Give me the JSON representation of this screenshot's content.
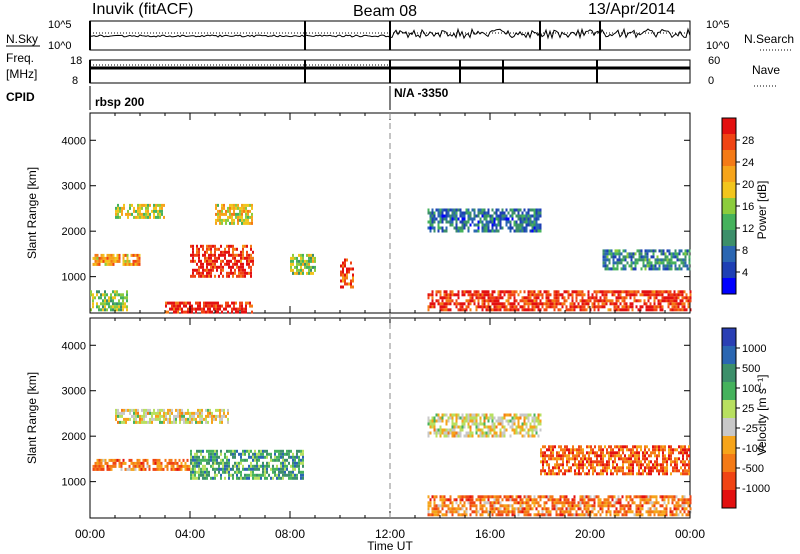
{
  "header": {
    "station": "Inuvik (fitACF)",
    "beam": "Beam 08",
    "date": "13/Apr/2014"
  },
  "top_panels": {
    "nsky_label": "N.Sky",
    "nsky_ticks": [
      "10^5",
      "10^0"
    ],
    "nsearch_label": "N.Search",
    "nsearch_ticks": [
      "10^5",
      "10^0"
    ],
    "freq_label": "Freq.",
    "freq_unit": "[MHz]",
    "freq_ticks": [
      "18",
      "8"
    ],
    "nave_label": "Nave",
    "nave_ticks": [
      "60",
      "0"
    ],
    "cpid_label": "CPID",
    "cpid_segments": [
      "rbsp 200",
      "N/A -3350"
    ]
  },
  "chart_data": [
    {
      "type": "heatmap",
      "title": "",
      "xlabel": "",
      "ylabel": "Slant Range [km]",
      "x_ticks": [
        "00:00",
        "04:00",
        "08:00",
        "12:00",
        "16:00",
        "20:00",
        "00:00"
      ],
      "y_ticks": [
        "1000",
        "2000",
        "3000",
        "4000"
      ],
      "ylim": [
        200,
        4600
      ],
      "xlim": [
        0,
        24
      ],
      "colorbar": {
        "label": "Power [dB]",
        "ticks": [
          "4",
          "8",
          "12",
          "16",
          "20",
          "24",
          "28"
        ],
        "colors": [
          "#0000ff",
          "#1e3fb4",
          "#2a66b2",
          "#3c8f6a",
          "#45b25c",
          "#8ccc3c",
          "#f2c51c",
          "#f6a41a",
          "#f47a16",
          "#f04414",
          "#e31010"
        ]
      },
      "regions": [
        {
          "t": [
            0.1,
            2.0
          ],
          "r": [
            1250,
            1500
          ],
          "level": 0.7
        },
        {
          "t": [
            1.0,
            3.0
          ],
          "r": [
            2300,
            2600
          ],
          "level": 0.55
        },
        {
          "t": [
            4.0,
            6.5
          ],
          "r": [
            1000,
            1700
          ],
          "level": 0.9
        },
        {
          "t": [
            5.0,
            6.5
          ],
          "r": [
            2200,
            2600
          ],
          "level": 0.6
        },
        {
          "t": [
            8.0,
            9.0
          ],
          "r": [
            1100,
            1500
          ],
          "level": 0.5
        },
        {
          "t": [
            10.0,
            10.5
          ],
          "r": [
            800,
            1400
          ],
          "level": 0.85
        },
        {
          "t": [
            0.0,
            1.5
          ],
          "r": [
            300,
            700
          ],
          "level": 0.45
        },
        {
          "t": [
            3.0,
            6.5
          ],
          "r": [
            250,
            450
          ],
          "level": 0.95
        },
        {
          "t": [
            13.5,
            24.0
          ],
          "r": [
            280,
            700
          ],
          "level": 0.9
        },
        {
          "t": [
            13.5,
            18.0
          ],
          "r": [
            2000,
            2500
          ],
          "level": 0.25
        },
        {
          "t": [
            20.5,
            24.0
          ],
          "r": [
            1200,
            1600
          ],
          "level": 0.3
        }
      ]
    },
    {
      "type": "heatmap",
      "title": "",
      "xlabel": "Time UT",
      "ylabel": "Slant Range [km]",
      "x_ticks": [
        "00:00",
        "04:00",
        "08:00",
        "12:00",
        "16:00",
        "20:00",
        "00:00"
      ],
      "y_ticks": [
        "1000",
        "2000",
        "3000",
        "4000"
      ],
      "ylim": [
        200,
        4600
      ],
      "xlim": [
        0,
        24
      ],
      "colorbar": {
        "label": "Velocity [m s⁻¹]",
        "ticks": [
          "1000",
          "500",
          "100",
          "25",
          "-25",
          "-100",
          "-500",
          "-1000"
        ],
        "colors": [
          "#2a3fb4",
          "#2a66b2",
          "#3c8f6a",
          "#45b25c",
          "#b8e060",
          "#c8c8c8",
          "#f6a41a",
          "#f47a16",
          "#f04414",
          "#e31010"
        ]
      },
      "regions": [
        {
          "t": [
            0.1,
            4.0
          ],
          "r": [
            1250,
            1500
          ],
          "level": 0.75
        },
        {
          "t": [
            4.0,
            8.5
          ],
          "r": [
            1100,
            1700
          ],
          "level": 0.3
        },
        {
          "t": [
            1.0,
            5.5
          ],
          "r": [
            2300,
            2600
          ],
          "level": 0.55
        },
        {
          "t": [
            13.5,
            24.0
          ],
          "r": [
            300,
            700
          ],
          "level": 0.75
        },
        {
          "t": [
            13.5,
            18.0
          ],
          "r": [
            2000,
            2500
          ],
          "level": 0.55
        },
        {
          "t": [
            18.0,
            24.0
          ],
          "r": [
            1200,
            1800
          ],
          "level": 0.8
        }
      ]
    }
  ]
}
